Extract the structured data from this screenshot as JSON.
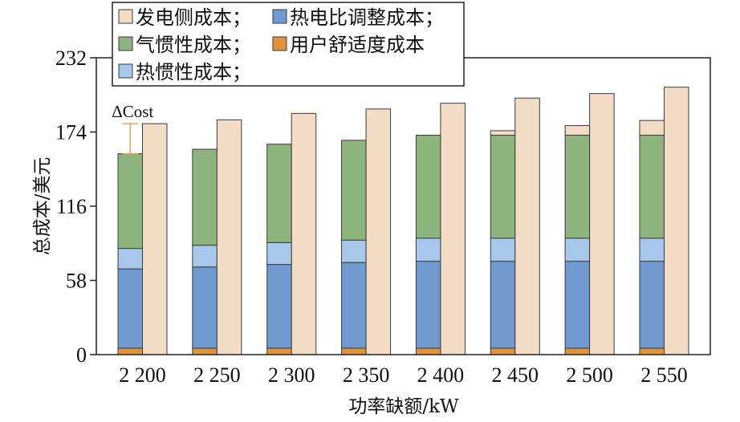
{
  "chart_data": {
    "type": "bar",
    "stacked": true,
    "categories": [
      "2 200",
      "2 250",
      "2 300",
      "2 350",
      "2 400",
      "2 450",
      "2 500",
      "2 550"
    ],
    "legend_position": "top-left",
    "legend": [
      {
        "label": "发电侧成本；",
        "color": "#f2dcc6"
      },
      {
        "label": "热电比调整成本；",
        "color": "#6f99cf"
      },
      {
        "label": "气惯性成本；",
        "color": "#8db47c"
      },
      {
        "label": "用户舒适度成本",
        "color": "#e0913b"
      },
      {
        "label": "热惯性成本；",
        "color": "#a7c8ea"
      }
    ],
    "series": [
      {
        "legend": 3,
        "stack": "left",
        "values": [
          5,
          5,
          5,
          5,
          5,
          5,
          5,
          5
        ]
      },
      {
        "legend": 1,
        "stack": "left",
        "values": [
          62,
          63.5,
          65.5,
          67,
          68,
          68,
          68,
          68
        ]
      },
      {
        "legend": 4,
        "stack": "left",
        "values": [
          16,
          17,
          17,
          17.5,
          18,
          18,
          18,
          18
        ]
      },
      {
        "legend": 2,
        "stack": "left",
        "values": [
          74,
          75,
          77,
          78,
          80.5,
          80.5,
          80.5,
          80.5
        ]
      },
      {
        "legend": 0,
        "stack": "left",
        "values": [
          0,
          0,
          0,
          0,
          0,
          3.5,
          7.5,
          11.5
        ]
      },
      {
        "legend": 0,
        "stack": "right",
        "values": [
          180.5,
          183.5,
          188.5,
          192,
          196.5,
          200.5,
          204,
          209
        ]
      }
    ],
    "xlabel": "功率缺额/kW",
    "ylabel": "总成本/美元",
    "ylim": [
      0,
      232
    ],
    "yticks": [
      0,
      58,
      116,
      174,
      232
    ],
    "grid": false,
    "annotation": {
      "text": "ΔCost",
      "category": "2 200",
      "color": "#e6a15c"
    }
  }
}
